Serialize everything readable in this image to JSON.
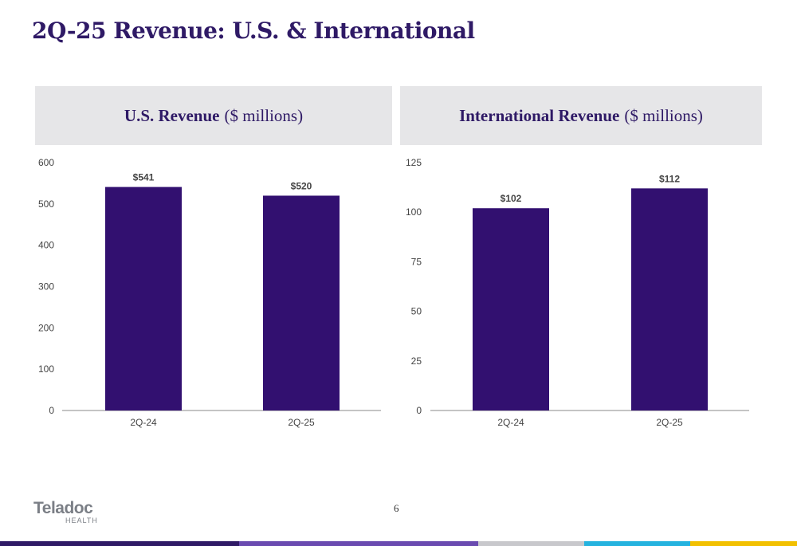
{
  "title": "2Q-25 Revenue: U.S. & International",
  "panels": {
    "us": {
      "title_strong": "U.S. Revenue",
      "title_rest": "($ millions)"
    },
    "intl": {
      "title_strong": "International Revenue",
      "title_rest": "($ millions)"
    }
  },
  "chart_data": [
    {
      "type": "bar",
      "title": "U.S. Revenue ($ millions)",
      "categories": [
        "2Q-24",
        "2Q-25"
      ],
      "values": [
        541,
        520
      ],
      "data_labels": [
        "$541",
        "$520"
      ],
      "ylim": [
        0,
        600
      ],
      "yticks": [
        0,
        100,
        200,
        300,
        400,
        500,
        600
      ],
      "bar_color": "#321070",
      "grid": false
    },
    {
      "type": "bar",
      "title": "International Revenue ($ millions)",
      "categories": [
        "2Q-24",
        "2Q-25"
      ],
      "values": [
        102,
        112
      ],
      "data_labels": [
        "$102",
        "$112"
      ],
      "ylim": [
        0,
        125
      ],
      "yticks": [
        0,
        25,
        50,
        75,
        100,
        125
      ],
      "bar_color": "#321070",
      "grid": false
    }
  ],
  "footer": {
    "logo_text": "Teladoc",
    "logo_sub": "HEALTH",
    "page_number": "6",
    "stripe_colors": [
      "#2f1a66",
      "#6a4bb0",
      "#c8c8cc",
      "#25b3df",
      "#f2c000"
    ]
  }
}
